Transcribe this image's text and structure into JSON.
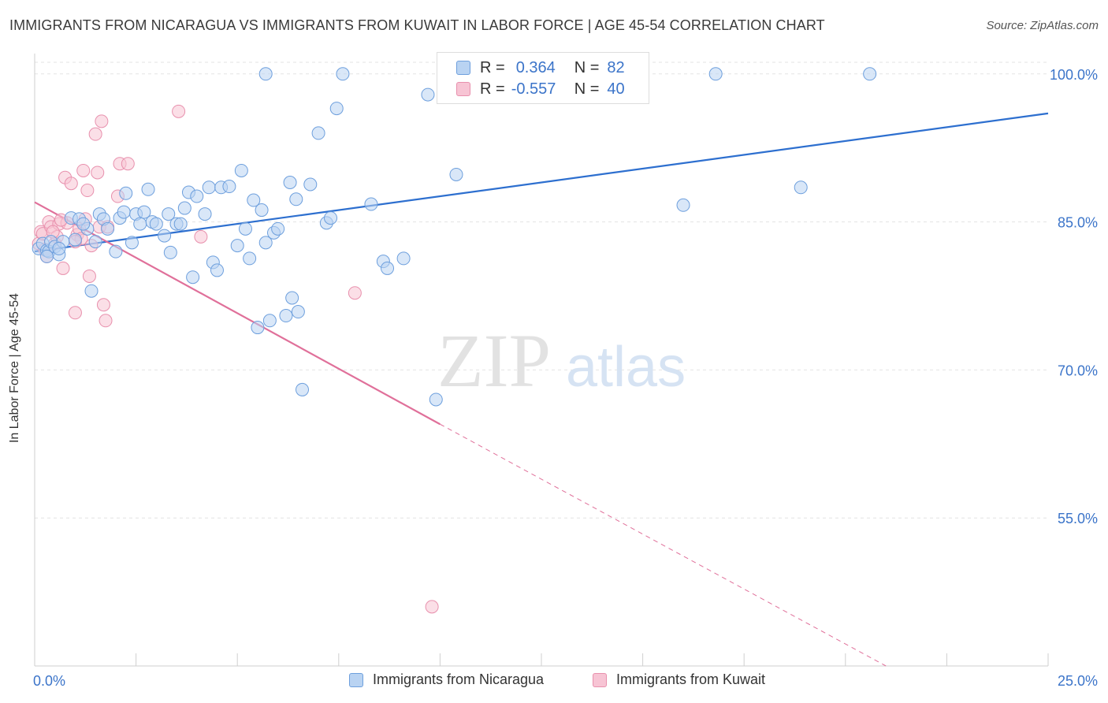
{
  "header": {
    "title": "IMMIGRANTS FROM NICARAGUA VS IMMIGRANTS FROM KUWAIT IN LABOR FORCE | AGE 45-54 CORRELATION CHART",
    "source": "Source: ZipAtlas.com"
  },
  "watermark": {
    "zip": "ZIP",
    "atlas": "atlas"
  },
  "legend": {
    "rows": [
      {
        "r_label": "R =",
        "r_value": "0.364",
        "n_label": "N =",
        "n_value": "82"
      },
      {
        "r_label": "R =",
        "r_value": "-0.557",
        "n_label": "N =",
        "n_value": "40"
      }
    ]
  },
  "colors": {
    "blue_fill": "#b9d3f2",
    "blue_stroke": "#6d9fdd",
    "blue_line": "#2d6fcf",
    "pink_fill": "#f7c4d4",
    "pink_stroke": "#e890ad",
    "pink_line": "#e0709a",
    "axis_text": "#3b74c9",
    "grid": "#e3e3e3"
  },
  "chart_data": {
    "type": "scatter",
    "title": "IMMIGRANTS FROM NICARAGUA VS IMMIGRANTS FROM KUWAIT IN LABOR FORCE | AGE 45-54 CORRELATION CHART",
    "xlabel": "",
    "ylabel": "In Labor Force | Age 45-54",
    "xlim": [
      0,
      25
    ],
    "ylim": [
      40,
      101.5
    ],
    "x_tick_labels": [
      "0.0%",
      "25.0%"
    ],
    "y_tick_values": [
      55,
      70,
      85,
      100
    ],
    "y_tick_labels": [
      "55.0%",
      "70.0%",
      "85.0%",
      "100.0%"
    ],
    "grid": true,
    "legend_placement": "bottom-center",
    "series": [
      {
        "name": "Immigrants from Nicaragua",
        "color": "#b9d3f2",
        "r": 0.364,
        "n": 82,
        "trend": {
          "x": [
            0,
            25
          ],
          "y": [
            82.0,
            96.0
          ]
        },
        "points": [
          [
            0.1,
            82.3
          ],
          [
            0.2,
            82.8
          ],
          [
            0.3,
            82.1
          ],
          [
            0.35,
            82.0
          ],
          [
            0.4,
            83.0
          ],
          [
            0.5,
            82.5
          ],
          [
            0.6,
            81.7
          ],
          [
            0.7,
            83.0
          ],
          [
            0.9,
            85.4
          ],
          [
            1.0,
            83.2
          ],
          [
            1.1,
            85.3
          ],
          [
            1.3,
            84.3
          ],
          [
            1.4,
            78.0
          ],
          [
            1.5,
            83.0
          ],
          [
            1.6,
            85.8
          ],
          [
            1.7,
            85.3
          ],
          [
            1.8,
            84.3
          ],
          [
            2.0,
            82.0
          ],
          [
            2.1,
            85.4
          ],
          [
            2.2,
            86.0
          ],
          [
            2.25,
            87.9
          ],
          [
            2.4,
            82.9
          ],
          [
            2.5,
            85.8
          ],
          [
            2.6,
            84.8
          ],
          [
            2.7,
            86.0
          ],
          [
            2.8,
            88.3
          ],
          [
            2.9,
            85.0
          ],
          [
            3.0,
            84.8
          ],
          [
            3.2,
            83.6
          ],
          [
            3.3,
            85.8
          ],
          [
            3.35,
            81.9
          ],
          [
            3.5,
            84.8
          ],
          [
            3.6,
            84.8
          ],
          [
            3.7,
            86.4
          ],
          [
            3.8,
            88.0
          ],
          [
            3.9,
            79.4
          ],
          [
            4.0,
            87.6
          ],
          [
            4.2,
            85.8
          ],
          [
            4.3,
            88.5
          ],
          [
            4.4,
            80.9
          ],
          [
            4.5,
            80.1
          ],
          [
            4.6,
            88.5
          ],
          [
            4.8,
            88.6
          ],
          [
            5.0,
            82.6
          ],
          [
            5.1,
            90.2
          ],
          [
            5.2,
            84.3
          ],
          [
            5.3,
            81.3
          ],
          [
            5.4,
            87.2
          ],
          [
            5.5,
            74.3
          ],
          [
            5.6,
            86.2
          ],
          [
            5.7,
            82.9
          ],
          [
            5.8,
            75.0
          ],
          [
            5.9,
            83.9
          ],
          [
            6.0,
            84.3
          ],
          [
            6.2,
            75.5
          ],
          [
            6.3,
            89.0
          ],
          [
            6.35,
            77.3
          ],
          [
            6.45,
            87.3
          ],
          [
            6.5,
            75.9
          ],
          [
            6.6,
            68.0
          ],
          [
            6.8,
            88.8
          ],
          [
            7.0,
            94.0
          ],
          [
            7.2,
            84.9
          ],
          [
            7.3,
            85.4
          ],
          [
            7.45,
            96.5
          ],
          [
            7.6,
            100.0
          ],
          [
            8.3,
            86.8
          ],
          [
            8.6,
            81.0
          ],
          [
            8.7,
            80.3
          ],
          [
            9.1,
            81.3
          ],
          [
            9.7,
            97.9
          ],
          [
            9.9,
            67.0
          ],
          [
            10.2,
            100.0
          ],
          [
            10.4,
            89.8
          ],
          [
            16.0,
            86.7
          ],
          [
            16.8,
            100.0
          ],
          [
            18.9,
            88.5
          ],
          [
            20.6,
            100.0
          ],
          [
            5.7,
            100.0
          ],
          [
            0.3,
            81.5
          ],
          [
            0.6,
            82.3
          ],
          [
            1.2,
            84.8
          ]
        ]
      },
      {
        "name": "Immigrants from Kuwait",
        "color": "#f7c4d4",
        "r": -0.557,
        "n": 40,
        "trend": {
          "x": [
            0,
            10
          ],
          "y": [
            87.0,
            64.5
          ]
        },
        "trend_dashed": {
          "x": [
            10,
            21
          ],
          "y": [
            64.5,
            40.0
          ]
        },
        "points": [
          [
            0.1,
            82.8
          ],
          [
            0.15,
            84.0
          ],
          [
            0.2,
            83.8
          ],
          [
            0.25,
            82.2
          ],
          [
            0.3,
            81.5
          ],
          [
            0.35,
            85.0
          ],
          [
            0.4,
            84.5
          ],
          [
            0.5,
            82.8
          ],
          [
            0.55,
            83.5
          ],
          [
            0.6,
            84.8
          ],
          [
            0.7,
            80.3
          ],
          [
            0.75,
            89.5
          ],
          [
            0.8,
            84.9
          ],
          [
            0.9,
            88.9
          ],
          [
            1.0,
            75.8
          ],
          [
            1.05,
            83.7
          ],
          [
            1.1,
            84.3
          ],
          [
            1.15,
            83.3
          ],
          [
            1.2,
            90.2
          ],
          [
            1.25,
            85.3
          ],
          [
            1.3,
            88.2
          ],
          [
            1.35,
            79.5
          ],
          [
            1.4,
            82.6
          ],
          [
            1.5,
            93.9
          ],
          [
            1.55,
            90.0
          ],
          [
            1.6,
            84.5
          ],
          [
            1.65,
            95.2
          ],
          [
            1.7,
            76.6
          ],
          [
            1.75,
            75.0
          ],
          [
            1.8,
            84.5
          ],
          [
            2.05,
            87.6
          ],
          [
            2.1,
            90.9
          ],
          [
            2.3,
            90.9
          ],
          [
            3.55,
            96.2
          ],
          [
            4.1,
            83.5
          ],
          [
            7.9,
            77.8
          ],
          [
            9.8,
            46.0
          ],
          [
            0.65,
            85.2
          ],
          [
            1.0,
            83.0
          ],
          [
            0.45,
            84.0
          ]
        ]
      }
    ]
  }
}
